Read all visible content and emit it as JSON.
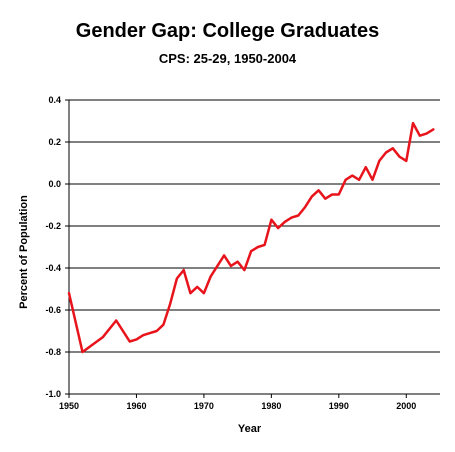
{
  "chart_data": {
    "type": "line",
    "title": "Gender Gap: College Graduates",
    "subtitle": "CPS: 25-29, 1950-2004",
    "xlabel": "Year",
    "ylabel": "Percent of Population",
    "xlim": [
      1950,
      2005
    ],
    "ylim": [
      -1.0,
      0.4
    ],
    "xticks": [
      "1950",
      "1960",
      "1970",
      "1980",
      "1990",
      "2000"
    ],
    "xtick_values": [
      1950,
      1960,
      1970,
      1980,
      1990,
      2000
    ],
    "yticks": [
      "0.4",
      "0.2",
      "0.0",
      "-0.2",
      "-0.4",
      "-0.6",
      "-0.8",
      "-1.0"
    ],
    "ytick_values": [
      0.4,
      0.2,
      0.0,
      -0.2,
      -0.4,
      -0.6,
      -0.8,
      -1.0
    ],
    "grid": "horizontal",
    "legend": "none",
    "series": [
      {
        "color": "#e8141c",
        "x": [
          1950,
          1952,
          1955,
          1957,
          1959,
          1960,
          1961,
          1962,
          1963,
          1964,
          1965,
          1966,
          1967,
          1968,
          1969,
          1970,
          1971,
          1972,
          1973,
          1974,
          1975,
          1976,
          1977,
          1978,
          1979,
          1980,
          1981,
          1982,
          1983,
          1984,
          1985,
          1986,
          1987,
          1988,
          1989,
          1990,
          1991,
          1992,
          1993,
          1994,
          1995,
          1996,
          1997,
          1998,
          1999,
          2000,
          2001,
          2002,
          2003,
          2004
        ],
        "y": [
          -0.52,
          -0.8,
          -0.73,
          -0.65,
          -0.75,
          -0.74,
          -0.72,
          -0.71,
          -0.7,
          -0.67,
          -0.57,
          -0.45,
          -0.41,
          -0.52,
          -0.49,
          -0.52,
          -0.44,
          -0.39,
          -0.34,
          -0.39,
          -0.37,
          -0.41,
          -0.32,
          -0.3,
          -0.29,
          -0.17,
          -0.21,
          -0.18,
          -0.16,
          -0.15,
          -0.11,
          -0.06,
          -0.03,
          -0.07,
          -0.05,
          -0.05,
          0.02,
          0.04,
          0.02,
          0.08,
          0.02,
          0.11,
          0.15,
          0.17,
          0.13,
          0.11,
          0.29,
          0.23,
          0.24,
          0.26
        ]
      }
    ]
  }
}
